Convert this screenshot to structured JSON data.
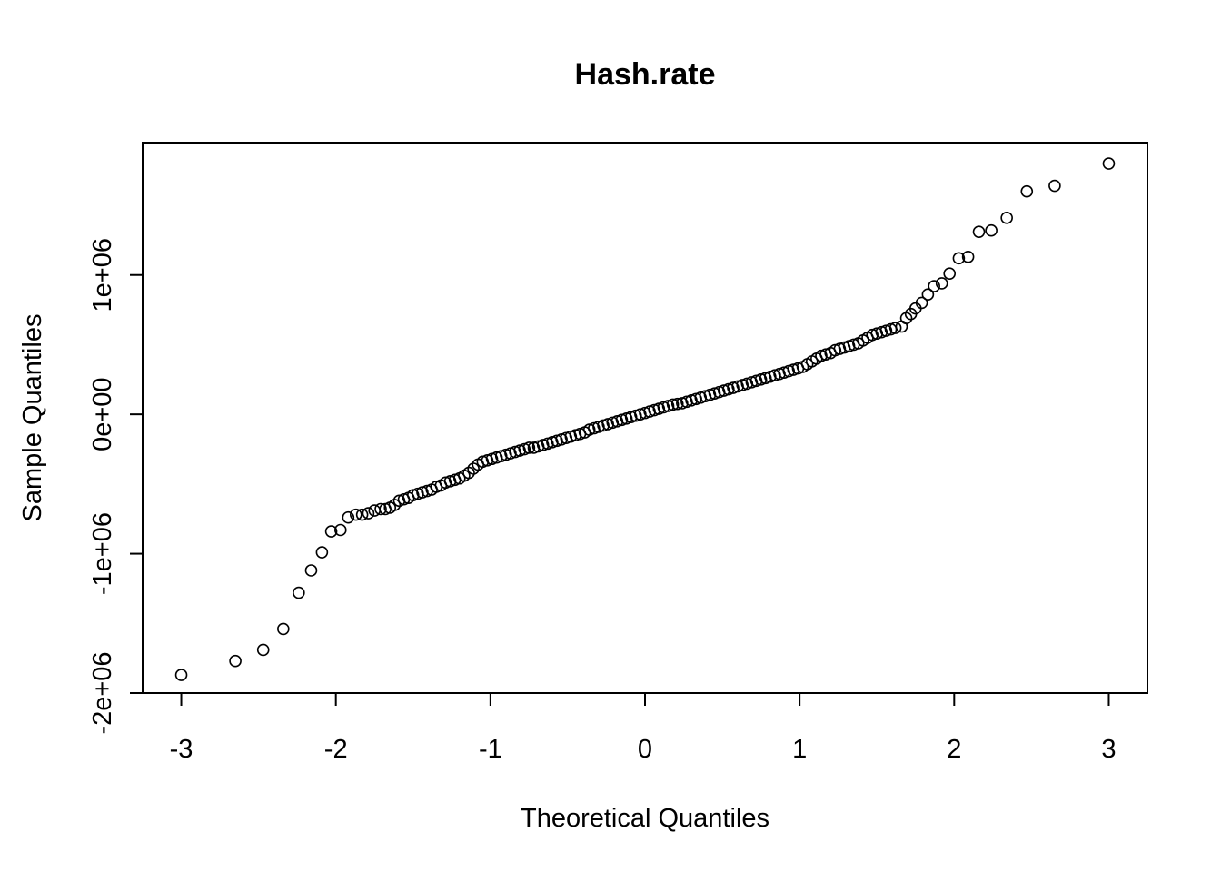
{
  "chart_data": {
    "type": "scatter",
    "title": "Hash.rate",
    "xlabel": "Theoretical Quantiles",
    "ylabel": "Sample Quantiles",
    "xlim": [
      -3.25,
      3.25
    ],
    "ylim": [
      -2000000,
      1950000
    ],
    "x_ticks": [
      {
        "value": -3,
        "label": "-3"
      },
      {
        "value": -2,
        "label": "-2"
      },
      {
        "value": -1,
        "label": "-1"
      },
      {
        "value": 0,
        "label": "0"
      },
      {
        "value": 1,
        "label": "1"
      },
      {
        "value": 2,
        "label": "2"
      },
      {
        "value": 3,
        "label": "3"
      }
    ],
    "y_ticks": [
      {
        "value": -2000000,
        "label": "-2e+06"
      },
      {
        "value": -1000000,
        "label": "-1e+06"
      },
      {
        "value": 0,
        "label": "0e+00"
      },
      {
        "value": 1000000,
        "label": "1e+06"
      }
    ],
    "grid": false,
    "legend": "none",
    "marker": "open-circle",
    "series": [
      {
        "points": [
          [
            -3.0,
            -1870000
          ],
          [
            -2.65,
            -1770000
          ],
          [
            -2.47,
            -1690000
          ],
          [
            -2.34,
            -1540000
          ],
          [
            -2.24,
            -1280000
          ],
          [
            -2.16,
            -1120000
          ],
          [
            -2.09,
            -990000
          ],
          [
            -2.03,
            -840000
          ],
          [
            -1.97,
            -830000
          ],
          [
            -1.92,
            -740000
          ],
          [
            -1.87,
            -720000
          ],
          [
            -1.83,
            -720000
          ],
          [
            -1.79,
            -710000
          ],
          [
            -1.75,
            -690000
          ],
          [
            -1.71,
            -680000
          ],
          [
            -1.68,
            -680000
          ],
          [
            -1.65,
            -670000
          ],
          [
            -1.62,
            -650000
          ],
          [
            -1.59,
            -620000
          ],
          [
            -1.56,
            -610000
          ],
          [
            -1.53,
            -600000
          ],
          [
            -1.5,
            -580000
          ],
          [
            -1.47,
            -570000
          ],
          [
            -1.44,
            -560000
          ],
          [
            -1.41,
            -550000
          ],
          [
            -1.38,
            -540000
          ],
          [
            -1.35,
            -520000
          ],
          [
            -1.32,
            -510000
          ],
          [
            -1.29,
            -490000
          ],
          [
            -1.26,
            -480000
          ],
          [
            -1.23,
            -470000
          ],
          [
            -1.2,
            -460000
          ],
          [
            -1.17,
            -440000
          ],
          [
            -1.14,
            -420000
          ],
          [
            -1.11,
            -390000
          ],
          [
            -1.08,
            -360000
          ],
          [
            -1.05,
            -340000
          ],
          [
            -1.02,
            -330000
          ],
          [
            -0.99,
            -320000
          ],
          [
            -0.96,
            -310000
          ],
          [
            -0.93,
            -300000
          ],
          [
            -0.9,
            -290000
          ],
          [
            -0.87,
            -280000
          ],
          [
            -0.84,
            -270000
          ],
          [
            -0.81,
            -260000
          ],
          [
            -0.78,
            -250000
          ],
          [
            -0.75,
            -240000
          ],
          [
            -0.72,
            -240000
          ],
          [
            -0.69,
            -230000
          ],
          [
            -0.66,
            -220000
          ],
          [
            -0.63,
            -210000
          ],
          [
            -0.6,
            -200000
          ],
          [
            -0.57,
            -190000
          ],
          [
            -0.54,
            -180000
          ],
          [
            -0.51,
            -170000
          ],
          [
            -0.48,
            -160000
          ],
          [
            -0.45,
            -150000
          ],
          [
            -0.42,
            -140000
          ],
          [
            -0.39,
            -130000
          ],
          [
            -0.36,
            -110000
          ],
          [
            -0.33,
            -100000
          ],
          [
            -0.3,
            -90000
          ],
          [
            -0.27,
            -80000
          ],
          [
            -0.24,
            -70000
          ],
          [
            -0.21,
            -60000
          ],
          [
            -0.18,
            -50000
          ],
          [
            -0.15,
            -40000
          ],
          [
            -0.12,
            -30000
          ],
          [
            -0.09,
            -20000
          ],
          [
            -0.06,
            -10000
          ],
          [
            -0.03,
            0
          ],
          [
            0.0,
            10000
          ],
          [
            0.03,
            20000
          ],
          [
            0.06,
            30000
          ],
          [
            0.09,
            40000
          ],
          [
            0.12,
            50000
          ],
          [
            0.15,
            60000
          ],
          [
            0.18,
            70000
          ],
          [
            0.21,
            75000
          ],
          [
            0.24,
            80000
          ],
          [
            0.27,
            90000
          ],
          [
            0.3,
            100000
          ],
          [
            0.33,
            110000
          ],
          [
            0.36,
            120000
          ],
          [
            0.39,
            130000
          ],
          [
            0.42,
            140000
          ],
          [
            0.45,
            150000
          ],
          [
            0.48,
            160000
          ],
          [
            0.51,
            170000
          ],
          [
            0.54,
            180000
          ],
          [
            0.57,
            190000
          ],
          [
            0.6,
            200000
          ],
          [
            0.63,
            210000
          ],
          [
            0.66,
            220000
          ],
          [
            0.69,
            230000
          ],
          [
            0.72,
            240000
          ],
          [
            0.75,
            250000
          ],
          [
            0.78,
            260000
          ],
          [
            0.81,
            270000
          ],
          [
            0.84,
            280000
          ],
          [
            0.87,
            290000
          ],
          [
            0.9,
            300000
          ],
          [
            0.93,
            310000
          ],
          [
            0.96,
            320000
          ],
          [
            0.99,
            330000
          ],
          [
            1.02,
            340000
          ],
          [
            1.05,
            360000
          ],
          [
            1.08,
            380000
          ],
          [
            1.11,
            400000
          ],
          [
            1.14,
            420000
          ],
          [
            1.17,
            430000
          ],
          [
            1.2,
            440000
          ],
          [
            1.23,
            460000
          ],
          [
            1.26,
            470000
          ],
          [
            1.29,
            480000
          ],
          [
            1.32,
            490000
          ],
          [
            1.35,
            500000
          ],
          [
            1.38,
            510000
          ],
          [
            1.41,
            530000
          ],
          [
            1.44,
            550000
          ],
          [
            1.47,
            570000
          ],
          [
            1.5,
            580000
          ],
          [
            1.53,
            590000
          ],
          [
            1.56,
            600000
          ],
          [
            1.59,
            610000
          ],
          [
            1.62,
            620000
          ],
          [
            1.66,
            630000
          ],
          [
            1.69,
            690000
          ],
          [
            1.72,
            720000
          ],
          [
            1.75,
            760000
          ],
          [
            1.79,
            800000
          ],
          [
            1.83,
            860000
          ],
          [
            1.87,
            920000
          ],
          [
            1.92,
            940000
          ],
          [
            1.97,
            1010000
          ],
          [
            2.03,
            1120000
          ],
          [
            2.09,
            1130000
          ],
          [
            2.16,
            1310000
          ],
          [
            2.24,
            1320000
          ],
          [
            2.34,
            1410000
          ],
          [
            2.47,
            1600000
          ],
          [
            2.65,
            1640000
          ],
          [
            3.0,
            1800000
          ]
        ]
      }
    ]
  }
}
